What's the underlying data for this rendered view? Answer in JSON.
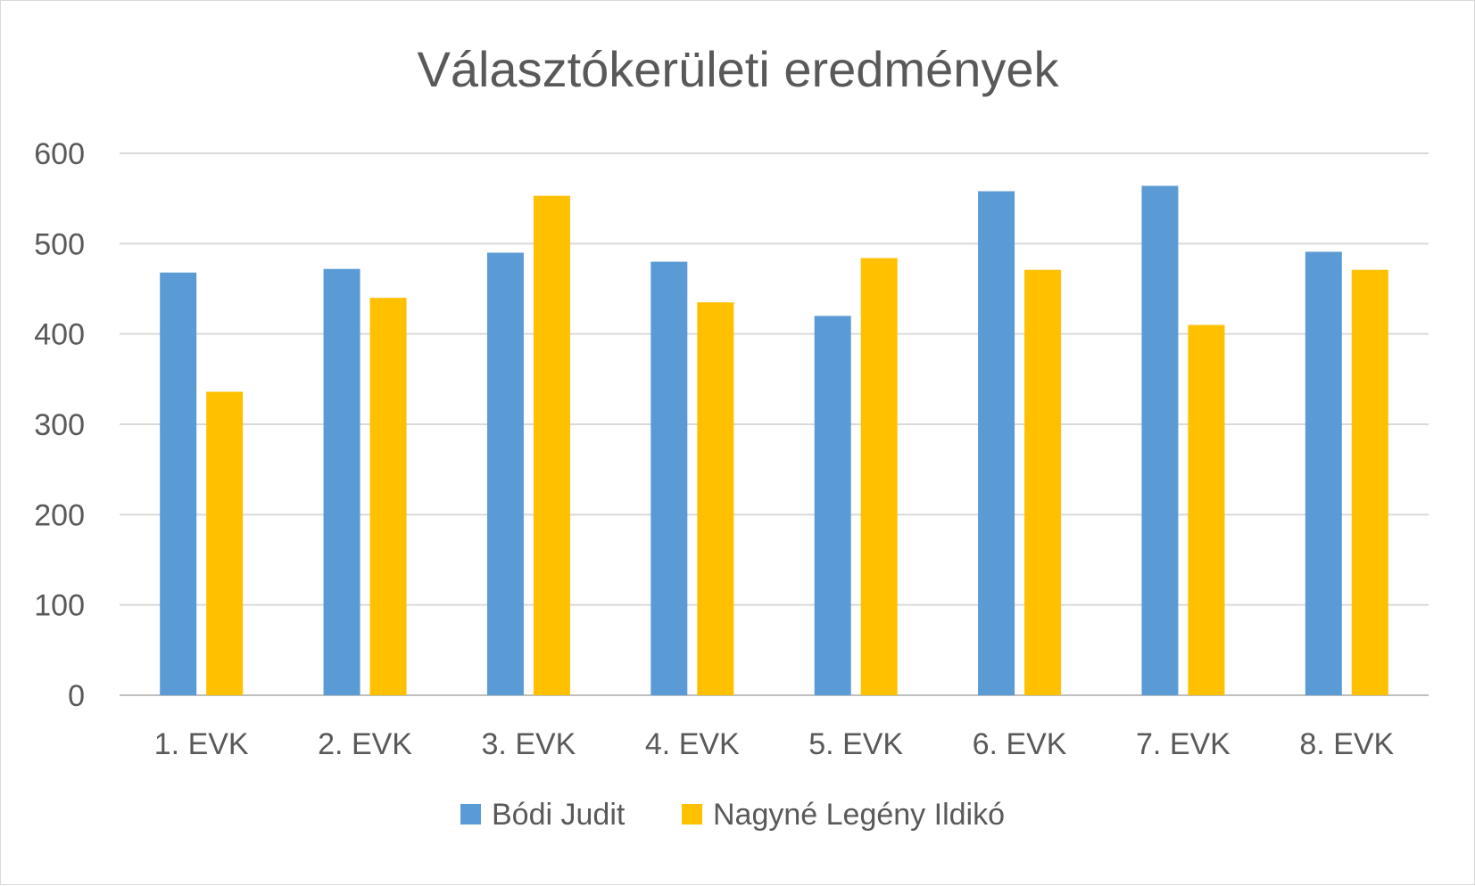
{
  "chart_data": {
    "type": "bar",
    "title": "Választókerületi eredmények",
    "xlabel": "",
    "ylabel": "",
    "categories": [
      "1. EVK",
      "2. EVK",
      "3. EVK",
      "4. EVK",
      "5. EVK",
      "6. EVK",
      "7. EVK",
      "8. EVK"
    ],
    "series": [
      {
        "name": "Bódi Judit",
        "color": "#5b9bd5",
        "values": [
          468,
          472,
          490,
          480,
          420,
          558,
          564,
          491
        ]
      },
      {
        "name": "Nagyné Legény Ildikó",
        "color": "#ffc000",
        "values": [
          336,
          440,
          553,
          435,
          484,
          471,
          410,
          471
        ]
      }
    ],
    "ylim": [
      0,
      600
    ],
    "yticks": [
      "0",
      "100",
      "200",
      "300",
      "400",
      "500",
      "600"
    ],
    "grid": true,
    "legend": "bottom-center"
  }
}
